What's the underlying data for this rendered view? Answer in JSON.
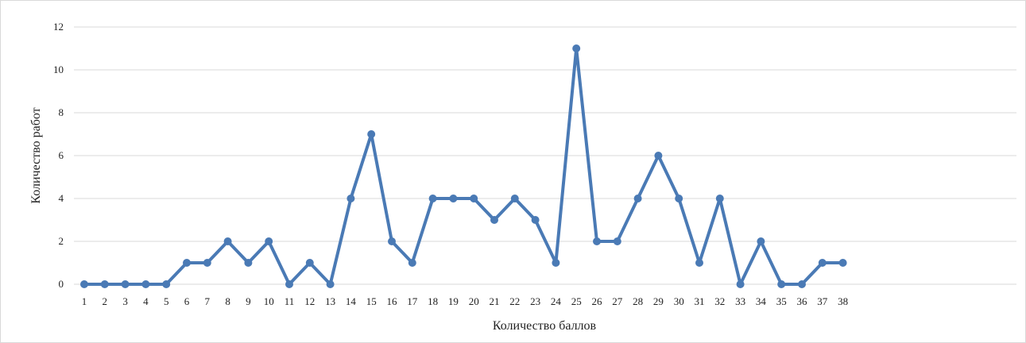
{
  "chart_data": {
    "type": "line",
    "title": "",
    "xlabel": "Количество баллов",
    "ylabel": "Количество работ",
    "x": [
      1,
      2,
      3,
      4,
      5,
      6,
      7,
      8,
      9,
      10,
      11,
      12,
      13,
      14,
      15,
      16,
      17,
      18,
      19,
      20,
      21,
      22,
      23,
      24,
      25,
      26,
      27,
      28,
      29,
      30,
      31,
      32,
      33,
      34,
      35,
      36,
      37,
      38
    ],
    "x_tick_labels": [
      "1",
      "2",
      "3",
      "4",
      "5",
      "6",
      "7",
      "8",
      "9",
      "10",
      "11",
      "12",
      "13",
      "14",
      "15",
      "16",
      "17",
      "18",
      "19",
      "20",
      "21",
      "22",
      "23",
      "24",
      "25",
      "26",
      "27",
      "28",
      "29",
      "30",
      "31",
      "32",
      "33",
      "34",
      "35",
      "36",
      "37",
      "38"
    ],
    "series": [
      {
        "values": [
          0,
          0,
          0,
          0,
          0,
          1,
          1,
          2,
          1,
          2,
          0,
          1,
          0,
          4,
          7,
          2,
          1,
          4,
          4,
          4,
          3,
          4,
          3,
          1,
          11,
          2,
          2,
          4,
          6,
          4,
          1,
          4,
          0,
          2,
          0,
          0,
          1,
          1
        ],
        "color": "#4a7ab5"
      }
    ],
    "ylim": [
      0,
      12
    ],
    "y_ticks": [
      0,
      2,
      4,
      6,
      8,
      10,
      12
    ],
    "y_tick_labels": [
      "0",
      "2",
      "4",
      "6",
      "8",
      "10",
      "12"
    ],
    "grid": true,
    "legend": "none",
    "colors": {
      "line": "#4a7ab5",
      "grid": "#d9d9d9",
      "text": "#222222"
    }
  }
}
